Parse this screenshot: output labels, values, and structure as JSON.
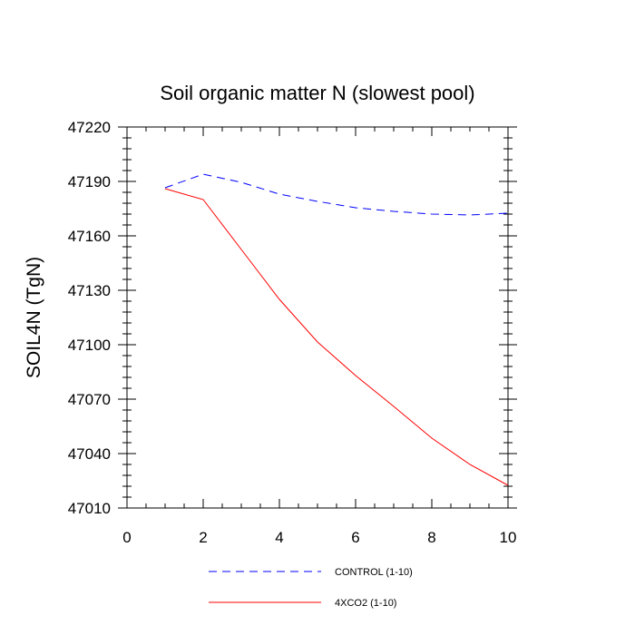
{
  "chart_data": {
    "type": "line",
    "title": "Soil organic matter N (slowest pool)",
    "xlabel": "",
    "ylabel": "SOIL4N  (TgN)",
    "xlim": [
      0,
      10
    ],
    "ylim": [
      47010,
      47220
    ],
    "xticks": [
      0,
      2,
      4,
      6,
      8,
      10
    ],
    "yticks": [
      47010,
      47040,
      47070,
      47100,
      47130,
      47160,
      47190,
      47220
    ],
    "grid": false,
    "legend_position": "bottom",
    "x": [
      1,
      2,
      3,
      4,
      5,
      6,
      7,
      8,
      9,
      10
    ],
    "series": [
      {
        "name": "CONTROL (1-10)",
        "color": "#0000ff",
        "dash": "dashed",
        "values": [
          47186.5,
          47194,
          47189.5,
          47183,
          47179,
          47175.5,
          47173.5,
          47172,
          47171.5,
          47172.5
        ]
      },
      {
        "name": "4XCO2 (1-10)",
        "color": "#ff0000",
        "dash": "solid",
        "values": [
          47186,
          47180,
          47152.5,
          47125,
          47101.5,
          47083,
          47066,
          47048.5,
          47034,
          47022.5
        ]
      }
    ]
  }
}
